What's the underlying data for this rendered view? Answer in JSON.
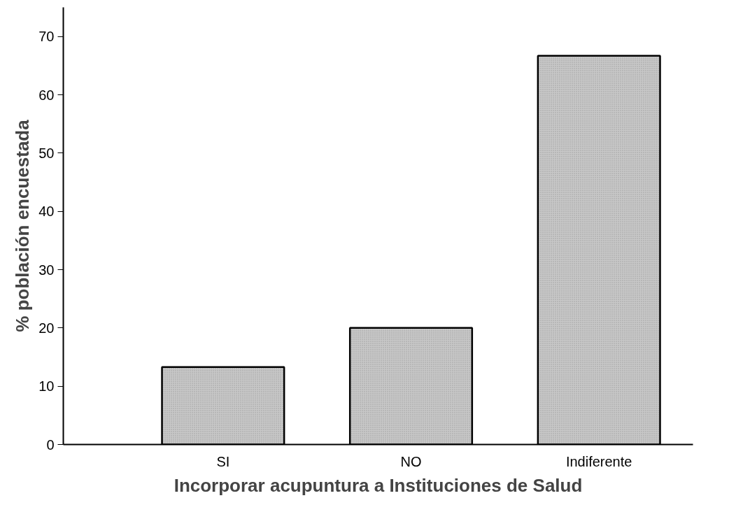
{
  "chart_data": {
    "type": "bar",
    "xlabel": "Incorporar acupuntura a Instituciones de Salud",
    "ylabel": "% población encuestada",
    "categories": [
      "SI",
      "NO",
      "Indiferente"
    ],
    "values": [
      13.3,
      20,
      66.7
    ],
    "color": "#c8c8c8",
    "ylim": [
      0,
      75
    ],
    "yticks": [
      0,
      10,
      20,
      30,
      40,
      50,
      60,
      70
    ],
    "grid": false
  }
}
